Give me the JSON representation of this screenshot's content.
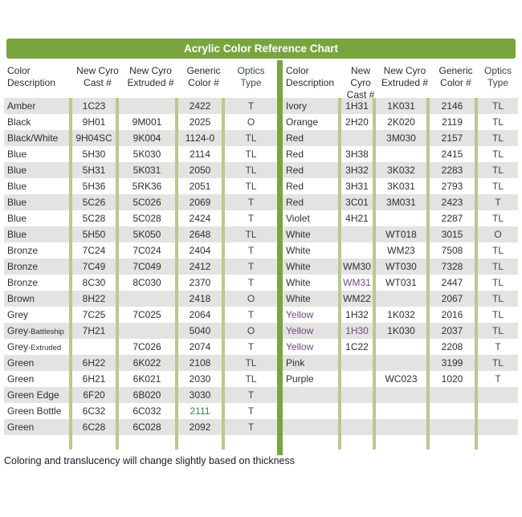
{
  "title": "Acrylic Color Reference Chart",
  "footer": "Coloring and translucency will change slightly based on thickness",
  "colors": {
    "header_green": "#7aa43e",
    "divider_light": "#b9c98e",
    "stripe_grey": "#e3e3e1",
    "text_dark": "#2f2f2f",
    "optics_text": "#3a4653",
    "purple_text": "#6e4a80",
    "green_text": "#3f7a52"
  },
  "column_headers": [
    {
      "line1": "Color",
      "line2": "Description"
    },
    {
      "line1": "New Cyro",
      "line2": "Cast #"
    },
    {
      "line1": "New Cyro",
      "line2": "Extruded #"
    },
    {
      "line1": "Generic",
      "line2": "Color #"
    },
    {
      "line1": "Optics",
      "line2": "Type"
    }
  ],
  "left_table": {
    "empty_rows": 0,
    "rows": [
      {
        "desc": "Amber",
        "cast": "1C23",
        "extruded": "",
        "generic": "2422",
        "optics": "T"
      },
      {
        "desc": "Black",
        "cast": "9H01",
        "extruded": "9M001",
        "generic": "2025",
        "optics": "O"
      },
      {
        "desc": "Black/White",
        "cast": "9H04SC",
        "extruded": "9K004",
        "generic": "1124-0",
        "optics": "TL"
      },
      {
        "desc": "Blue",
        "cast": "5H30",
        "extruded": "5K030",
        "generic": "2114",
        "optics": "TL"
      },
      {
        "desc": "Blue",
        "cast": "5H31",
        "extruded": "5K031",
        "generic": "2050",
        "optics": "TL"
      },
      {
        "desc": "Blue",
        "cast": "5H36",
        "extruded": "5RK36",
        "generic": "2051",
        "optics": "TL"
      },
      {
        "desc": "Blue",
        "cast": "5C26",
        "extruded": "5C026",
        "generic": "2069",
        "optics": "T"
      },
      {
        "desc": "Blue",
        "cast": "5C28",
        "extruded": "5C028",
        "generic": "2424",
        "optics": "T"
      },
      {
        "desc": "Blue",
        "cast": "5H50",
        "extruded": "5K050",
        "generic": "2648",
        "optics": "TL"
      },
      {
        "desc": "Bronze",
        "cast": "7C24",
        "extruded": "7C024",
        "generic": "2404",
        "optics": "T"
      },
      {
        "desc": "Bronze",
        "cast": "7C49",
        "extruded": "7C049",
        "generic": "2412",
        "optics": "T"
      },
      {
        "desc": "Bronze",
        "cast": "8C30",
        "extruded": "8C030",
        "generic": "2370",
        "optics": "T"
      },
      {
        "desc": "Brown",
        "cast": "8H22",
        "extruded": "",
        "generic": "2418",
        "optics": "O"
      },
      {
        "desc": "Grey",
        "cast": "7C25",
        "extruded": "7C025",
        "generic": "2064",
        "optics": "T"
      },
      {
        "desc": "Grey",
        "desc_small": "-Battleship",
        "cast": "7H21",
        "extruded": "",
        "generic": "5040",
        "optics": "O"
      },
      {
        "desc": "Grey",
        "desc_small": "-Extruded",
        "cast": "",
        "extruded": "7C026",
        "generic": "2074",
        "optics": "T"
      },
      {
        "desc": "Green",
        "cast": "6H22",
        "extruded": "6K022",
        "generic": "2108",
        "optics": "TL"
      },
      {
        "desc": "Green",
        "cast": "6H21",
        "extruded": "6K021",
        "generic": "2030",
        "optics": "TL"
      },
      {
        "desc": "Green Edge",
        "cast": "6F20",
        "extruded": "6B020",
        "generic": "3030",
        "optics": "T"
      },
      {
        "desc": "Green Bottle",
        "cast": "6C32",
        "extruded": "6C032",
        "generic": "2111",
        "generic_color": "green_text",
        "optics": "T"
      },
      {
        "desc": "Green",
        "cast": "6C28",
        "extruded": "6C028",
        "generic": "2092",
        "optics": "T"
      }
    ]
  },
  "right_table": {
    "empty_rows": 3,
    "rows": [
      {
        "desc": "Ivory",
        "cast": "1H31",
        "extruded": "1K031",
        "generic": "2146",
        "optics": "TL"
      },
      {
        "desc": "Orange",
        "cast": "2H20",
        "extruded": "2K020",
        "generic": "2119",
        "optics": "TL"
      },
      {
        "desc": "Red",
        "cast": "",
        "extruded": "3M030",
        "generic": "2157",
        "optics": "TL"
      },
      {
        "desc": "Red",
        "cast": "3H38",
        "extruded": "",
        "generic": "2415",
        "optics": "TL"
      },
      {
        "desc": "Red",
        "cast": "3H32",
        "extruded": "3K032",
        "generic": "2283",
        "optics": "TL"
      },
      {
        "desc": "Red",
        "cast": "3H31",
        "extruded": "3K031",
        "generic": "2793",
        "optics": "TL"
      },
      {
        "desc": "Red",
        "cast": "3C01",
        "extruded": "3M031",
        "generic": "2423",
        "optics": "T"
      },
      {
        "desc": "Violet",
        "cast": "4H21",
        "extruded": "",
        "generic": "2287",
        "optics": "TL"
      },
      {
        "desc": "White",
        "cast": "",
        "extruded": "WT018",
        "generic": "3015",
        "optics": "O"
      },
      {
        "desc": "White",
        "cast": "",
        "extruded": "WM23",
        "generic": "7508",
        "optics": "TL"
      },
      {
        "desc": "White",
        "cast": "WM30",
        "extruded": "WT030",
        "generic": "7328",
        "optics": "TL"
      },
      {
        "desc": "White",
        "cast": "WM31",
        "cast_color": "purple_text",
        "extruded": "WT031",
        "generic": "2447",
        "optics": "TL"
      },
      {
        "desc": "White",
        "cast": "WM22",
        "extruded": "",
        "generic": "2067",
        "optics": "TL"
      },
      {
        "desc": "Yellow",
        "desc_color": "purple_text",
        "cast": "1H32",
        "extruded": "1K032",
        "generic": "2016",
        "optics": "TL"
      },
      {
        "desc": "Yellow",
        "desc_color": "purple_text",
        "cast": "1H30",
        "cast_color": "purple_text",
        "extruded": "1K030",
        "generic": "2037",
        "optics": "TL"
      },
      {
        "desc": "Yellow",
        "desc_color": "purple_text",
        "cast": "1C22",
        "extruded": "",
        "generic": "2208",
        "optics": "T"
      },
      {
        "desc": "Pink",
        "cast": "",
        "extruded": "",
        "generic": "3199",
        "optics": "TL"
      },
      {
        "desc": "Purple",
        "cast": "",
        "extruded": "WC023",
        "generic": "1020",
        "optics": "T"
      }
    ]
  }
}
